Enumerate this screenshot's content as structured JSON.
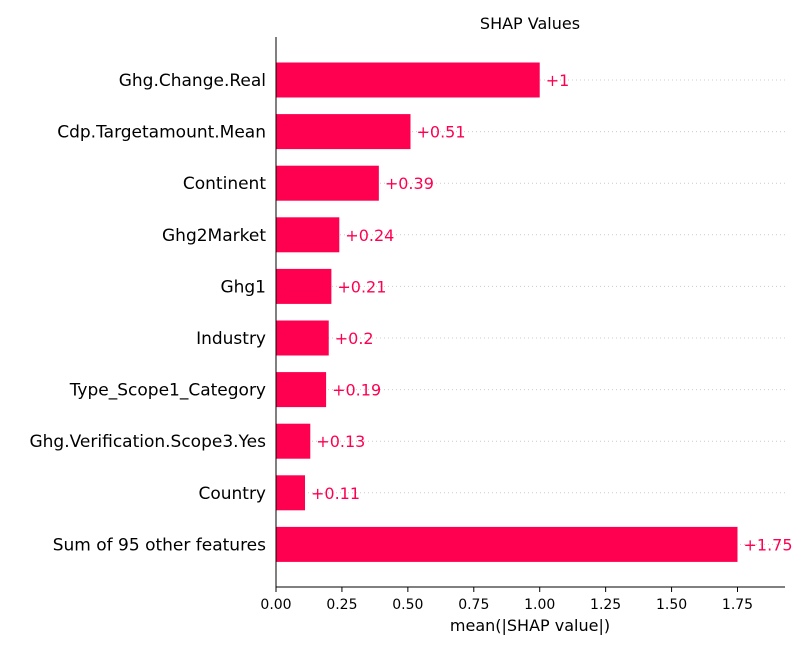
{
  "chart_data": {
    "type": "bar",
    "orientation": "horizontal",
    "title": "SHAP Values",
    "xlabel": "mean(|SHAP value|)",
    "ylabel": "",
    "xlim": [
      0,
      1.9
    ],
    "xticks": [
      "0.00",
      "0.25",
      "0.50",
      "0.75",
      "1.00",
      "1.25",
      "1.50",
      "1.75"
    ],
    "grid": "horizontal dotted lines per bar",
    "bar_color": "#ff0051",
    "categories": [
      "Ghg.Change.Real",
      "Cdp.Targetamount.Mean",
      "Continent",
      "Ghg2Market",
      "Ghg1",
      "Industry",
      "Type_Scope1_Category",
      "Ghg.Verification.Scope3.Yes",
      "Country",
      "Sum of 95 other features"
    ],
    "values": [
      1.0,
      0.51,
      0.39,
      0.24,
      0.21,
      0.2,
      0.19,
      0.13,
      0.11,
      1.75
    ],
    "value_labels": [
      "+1",
      "+0.51",
      "+0.39",
      "+0.24",
      "+0.21",
      "+0.2",
      "+0.19",
      "+0.13",
      "+0.11",
      "+1.75"
    ]
  }
}
